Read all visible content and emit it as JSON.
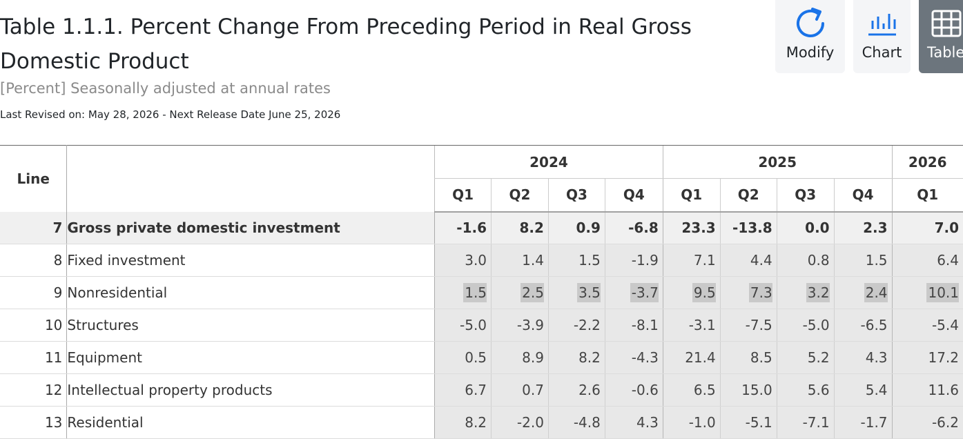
{
  "header": {
    "title": "Table 1.1.1. Percent Change From Preceding Period in Real Gross Domestic Product",
    "subtitle": "[Percent] Seasonally adjusted at annual rates",
    "revised": "Last Revised on: May 28, 2026 - Next Release Date June 25, 2026"
  },
  "toolbar": {
    "modify": {
      "label": "Modify",
      "icon": "refresh-icon"
    },
    "chart": {
      "label": "Chart",
      "icon": "bar-chart-icon"
    },
    "table": {
      "label": "Table",
      "icon": "table-grid-icon",
      "active": true
    },
    "accent_color": "#1a73e8"
  },
  "table": {
    "line_header": "Line",
    "years": [
      "2024",
      "2025",
      "2026"
    ],
    "quarters": [
      "Q1",
      "Q2",
      "Q3",
      "Q4",
      "Q1",
      "Q2",
      "Q3",
      "Q4",
      "Q1"
    ],
    "rows": [
      {
        "line": "7",
        "label": "Gross private domestic investment",
        "level": 0,
        "bold": true,
        "values": [
          "-1.6",
          "8.2",
          "0.9",
          "-6.8",
          "23.3",
          "-13.8",
          "0.0",
          "2.3",
          "7.0"
        ]
      },
      {
        "line": "8",
        "label": "Fixed investment",
        "level": 1,
        "values": [
          "3.0",
          "1.4",
          "1.5",
          "-1.9",
          "7.1",
          "4.4",
          "0.8",
          "1.5",
          "6.4"
        ]
      },
      {
        "line": "9",
        "label": "Nonresidential",
        "level": 2,
        "highlight": true,
        "values": [
          "1.5",
          "2.5",
          "3.5",
          "-3.7",
          "9.5",
          "7.3",
          "3.2",
          "2.4",
          "10.1"
        ]
      },
      {
        "line": "10",
        "label": "Structures",
        "level": 3,
        "values": [
          "-5.0",
          "-3.9",
          "-2.2",
          "-8.1",
          "-3.1",
          "-7.5",
          "-5.0",
          "-6.5",
          "-5.4"
        ]
      },
      {
        "line": "11",
        "label": "Equipment",
        "level": 3,
        "values": [
          "0.5",
          "8.9",
          "8.2",
          "-4.3",
          "21.4",
          "8.5",
          "5.2",
          "4.3",
          "17.2"
        ]
      },
      {
        "line": "12",
        "label": "Intellectual property products",
        "level": 3,
        "values": [
          "6.7",
          "0.7",
          "2.6",
          "-0.6",
          "6.5",
          "15.0",
          "5.6",
          "5.4",
          "11.6"
        ]
      },
      {
        "line": "13",
        "label": "Residential",
        "level": 2,
        "values": [
          "8.2",
          "-2.0",
          "-4.8",
          "4.3",
          "-1.0",
          "-5.1",
          "-7.1",
          "-1.7",
          "-6.2"
        ]
      }
    ]
  }
}
